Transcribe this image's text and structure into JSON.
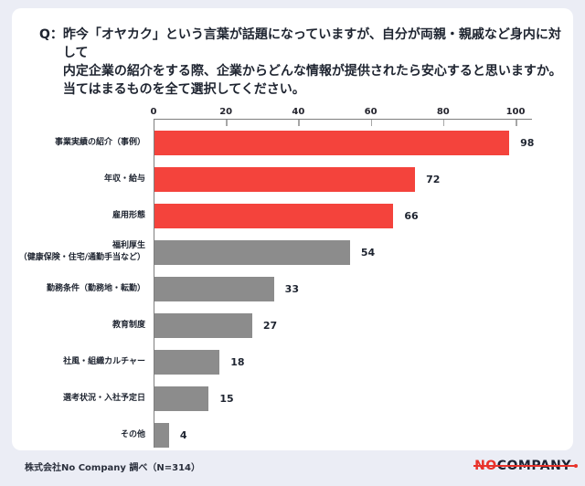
{
  "question": {
    "prefix": "Q：",
    "lines": [
      "昨今「オヤカク」という言葉が話題になっていますが、自分が両親・親戚など身内に対して",
      "内定企業の紹介をする際、企業からどんな情報が提供されたら安心すると思いますか。",
      "当てはまるものを全て選択してください。"
    ]
  },
  "chart_data": {
    "type": "bar",
    "orientation": "horizontal",
    "title": "",
    "xlabel": "",
    "ylabel": "",
    "xlim": [
      0,
      100
    ],
    "ticks": [
      0,
      20,
      40,
      60,
      80,
      100
    ],
    "grid": false,
    "legend": false,
    "categories": [
      "事業実績の紹介（事例）",
      "年収・給与",
      "雇用形態",
      "福利厚生\n（健康保険・住宅/通勤手当など）",
      "勤務条件（勤務地・転勤）",
      "教育制度",
      "社風・組織カルチャー",
      "選考状況・入社予定日",
      "その他"
    ],
    "values": [
      98,
      72,
      66,
      54,
      33,
      27,
      18,
      15,
      4
    ],
    "bar_colors": [
      "#F4433C",
      "#F4433C",
      "#F4433C",
      "#8C8C8C",
      "#8C8C8C",
      "#8C8C8C",
      "#8C8C8C",
      "#8C8C8C",
      "#8C8C8C"
    ],
    "highlight_color": "#F4433C",
    "default_color": "#8C8C8C"
  },
  "footer": {
    "source": "株式会社No Company 調べ（N=314）",
    "logo_part1": "NO",
    "logo_part2": "COMPANY"
  }
}
